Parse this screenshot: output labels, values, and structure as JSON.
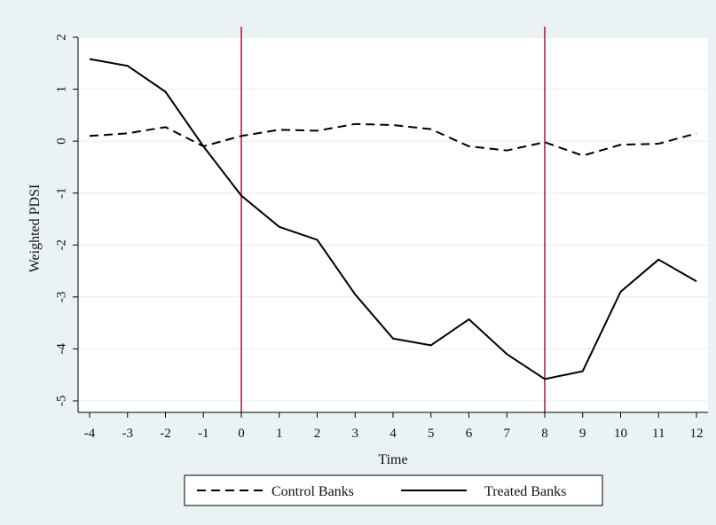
{
  "chart_data": {
    "type": "line",
    "xlabel": "Time",
    "ylabel": "Weighted PDSI",
    "x": [
      -4,
      -3,
      -2,
      -1,
      0,
      1,
      2,
      3,
      4,
      5,
      6,
      7,
      8,
      9,
      10,
      11,
      12
    ],
    "xlim": [
      -4,
      12
    ],
    "ylim": [
      -5,
      2
    ],
    "yticks": [
      2,
      1,
      0,
      -1,
      -2,
      -3,
      -4,
      -5
    ],
    "grid": true,
    "legend_position": "bottom",
    "vertical_lines": [
      0,
      8
    ],
    "vertical_line_color": "#b0204a",
    "series": [
      {
        "name": "Control Banks",
        "style": "dashed",
        "color": "#000000",
        "values": [
          0.1,
          0.15,
          0.27,
          -0.1,
          0.1,
          0.22,
          0.2,
          0.33,
          0.31,
          0.23,
          -0.1,
          -0.18,
          -0.02,
          -0.28,
          -0.07,
          -0.05,
          0.15
        ]
      },
      {
        "name": "Treated Banks",
        "style": "solid",
        "color": "#000000",
        "values": [
          1.58,
          1.45,
          0.95,
          -0.1,
          -1.05,
          -1.65,
          -1.9,
          -2.95,
          -3.8,
          -3.93,
          -3.43,
          -4.1,
          -4.58,
          -4.43,
          -2.9,
          -2.28,
          -2.7
        ]
      }
    ]
  }
}
